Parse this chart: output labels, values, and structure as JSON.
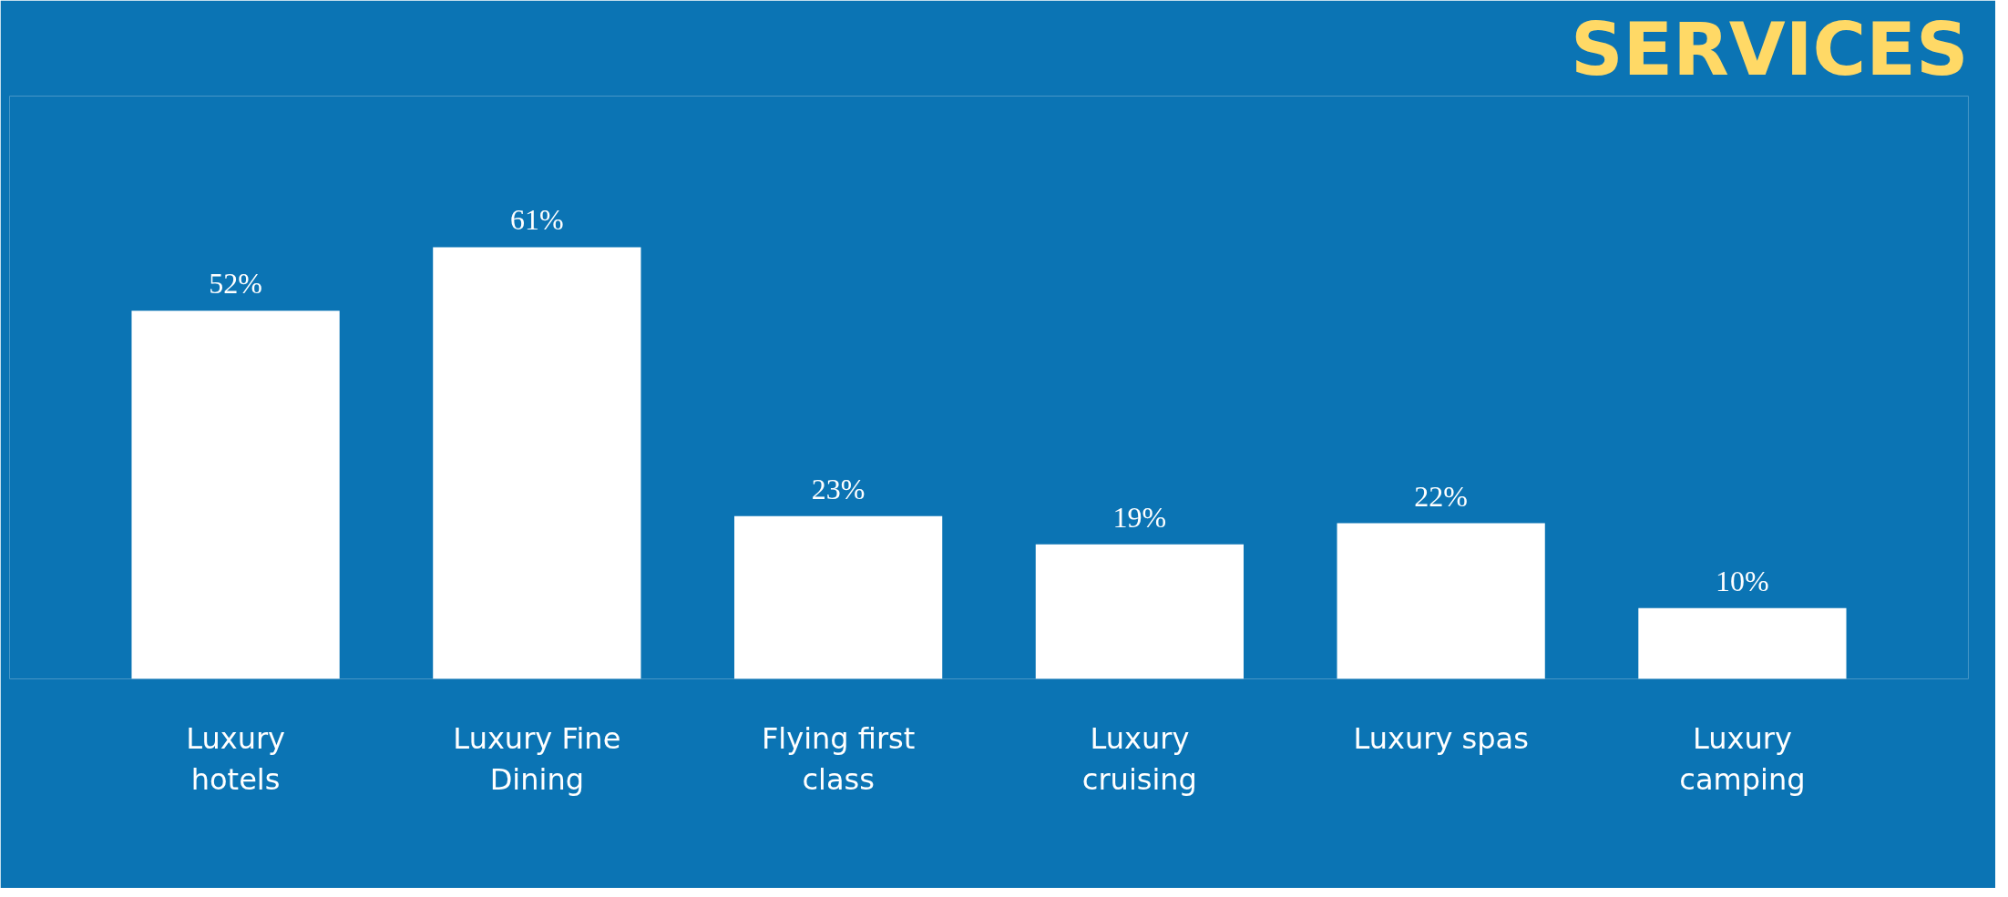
{
  "chart_data": {
    "type": "bar",
    "title": "SERVICES",
    "categories": [
      "Luxury hotels",
      "Luxury Fine Dining",
      "Flying first class",
      "Luxury cruising",
      "Luxury spas",
      "Luxury camping"
    ],
    "values": [
      52,
      61,
      23,
      19,
      22,
      10
    ],
    "value_labels": [
      "52%",
      "61%",
      "23%",
      "19%",
      "22%",
      "10%"
    ],
    "color": "#ffffff"
  }
}
